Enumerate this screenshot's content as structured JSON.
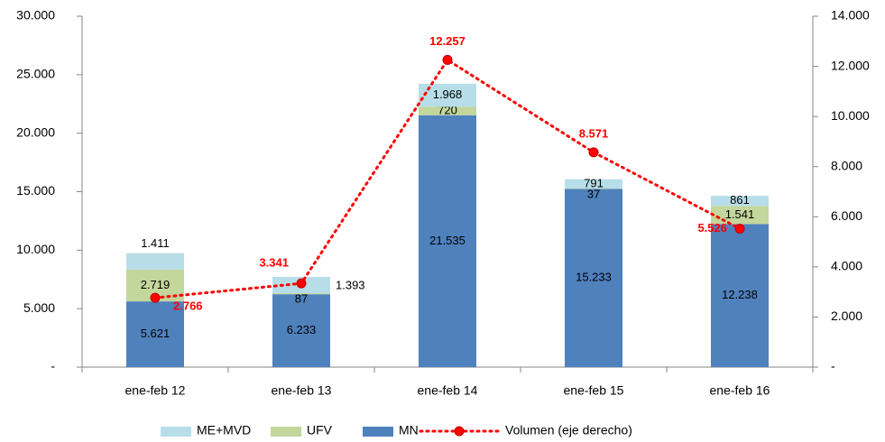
{
  "chart_data": {
    "type": "bar",
    "stacked": true,
    "categories": [
      "ene-feb 12",
      "ene-feb 13",
      "ene-feb 14",
      "ene-feb 15",
      "ene-feb 16"
    ],
    "series": [
      {
        "name": "MN",
        "color": "#4f81bd",
        "values": [
          5621,
          6233,
          21535,
          15233,
          12238
        ],
        "value_labels": [
          "5.621",
          "6.233",
          "21.535",
          "15.233",
          "12.238"
        ]
      },
      {
        "name": "UFV",
        "color": "#c3d69b",
        "values": [
          2719,
          87,
          720,
          37,
          1541
        ],
        "value_labels": [
          "2.719",
          "87",
          "720",
          "37",
          "1.541"
        ]
      },
      {
        "name": "ME+MVD",
        "color": "#b7dee8",
        "values": [
          1411,
          1393,
          1968,
          791,
          861
        ],
        "value_labels": [
          "1.411",
          "1.393",
          "1.968",
          "791",
          "861"
        ]
      },
      {
        "name": "Volumen (eje derecho)",
        "type": "line",
        "axis": "y2",
        "color": "#ff0000",
        "values": [
          2766,
          3341,
          12257,
          8571,
          5526
        ],
        "value_labels": [
          "2.766",
          "3.341",
          "12.257",
          "8.571",
          "5.526"
        ]
      }
    ],
    "ylim": [
      0,
      30000
    ],
    "yticks": [
      {
        "value": 0,
        "label": "-"
      },
      {
        "value": 5000,
        "label": "5.000"
      },
      {
        "value": 10000,
        "label": "10.000"
      },
      {
        "value": 15000,
        "label": "15.000"
      },
      {
        "value": 20000,
        "label": "20.000"
      },
      {
        "value": 25000,
        "label": "25.000"
      },
      {
        "value": 30000,
        "label": "30.000"
      }
    ],
    "y2lim": [
      0,
      14000
    ],
    "y2ticks": [
      {
        "value": 0,
        "label": "-"
      },
      {
        "value": 2000,
        "label": "2.000"
      },
      {
        "value": 4000,
        "label": "4.000"
      },
      {
        "value": 6000,
        "label": "6.000"
      },
      {
        "value": 8000,
        "label": "8.000"
      },
      {
        "value": 10000,
        "label": "10.000"
      },
      {
        "value": 12000,
        "label": "12.000"
      },
      {
        "value": 14000,
        "label": "14.000"
      }
    ],
    "grid": false,
    "legend": "bottom"
  }
}
